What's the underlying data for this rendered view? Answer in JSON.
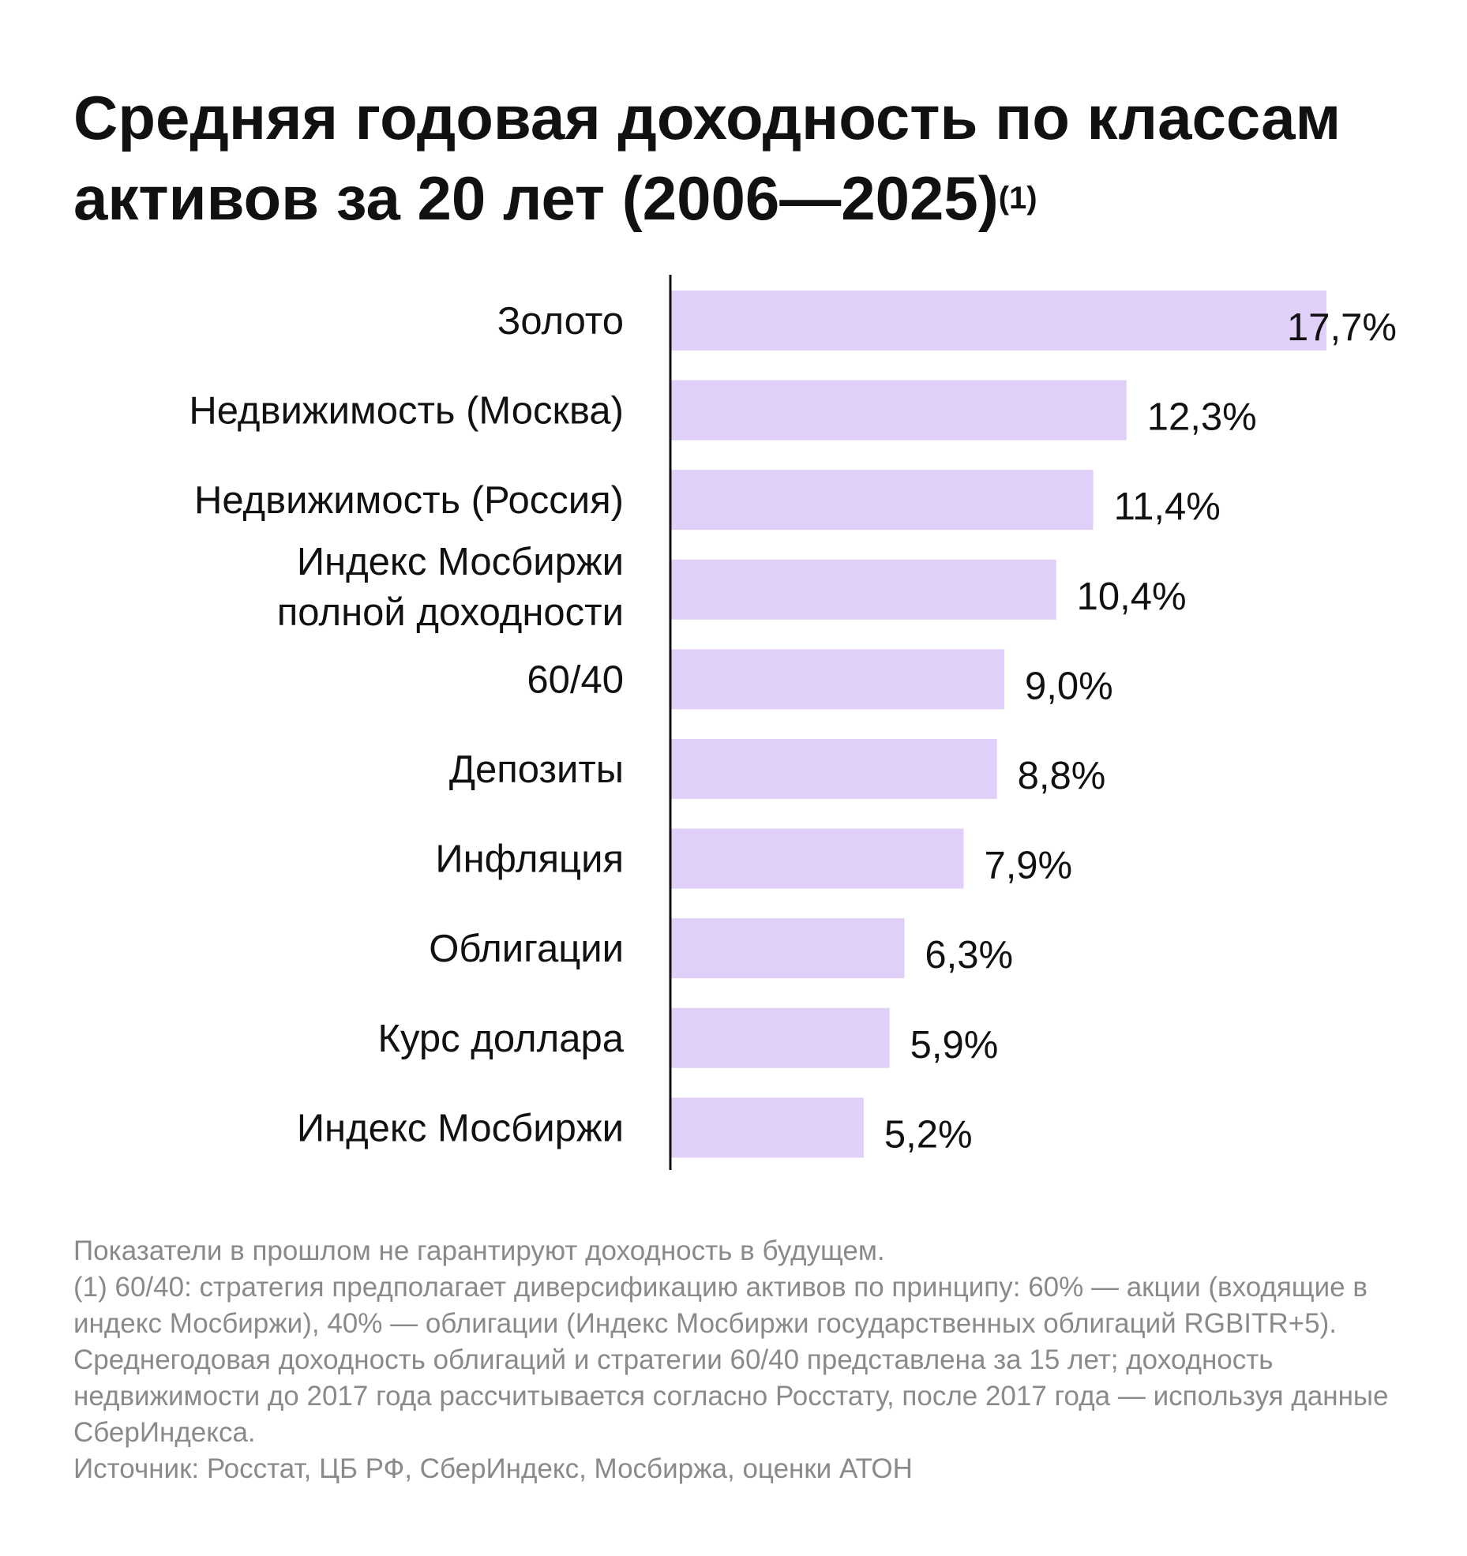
{
  "title": "Средняя годовая доходность по классам активов за 20 лет (2006—2025)",
  "title_sup": "(1)",
  "chart_data": {
    "type": "bar",
    "orientation": "horizontal",
    "title": "Средняя годовая доходность по классам активов за 20 лет (2006—2025)",
    "categories": [
      "Золото",
      "Недвижимость (Москва)",
      "Недвижимость (Россия)",
      "Индекс Мосбиржи полной доходности",
      "60/40",
      "Депозиты",
      "Инфляция",
      "Облигации",
      "Курс доллара",
      "Индекс Мосбиржи"
    ],
    "category_lines": [
      [
        "Золото"
      ],
      [
        "Недвижимость (Москва)"
      ],
      [
        "Недвижимость (Россия)"
      ],
      [
        "Индекс Мосбиржи",
        "полной доходности"
      ],
      [
        "60/40"
      ],
      [
        "Депозиты"
      ],
      [
        "Инфляция"
      ],
      [
        "Облигации"
      ],
      [
        "Курс доллара"
      ],
      [
        "Индекс Мосбиржи"
      ]
    ],
    "values": [
      17.7,
      12.3,
      11.4,
      10.4,
      9.0,
      8.8,
      7.9,
      6.3,
      5.9,
      5.2
    ],
    "value_labels": [
      "17,7%",
      "12,3%",
      "11,4%",
      "10,4%",
      "9,0%",
      "8,8%",
      "7,9%",
      "6,3%",
      "5,9%",
      "5,2%"
    ],
    "unit": "%",
    "xlim": [
      0,
      17.7
    ],
    "grid": false,
    "legend": "none",
    "bar_color": "#e0cff8",
    "axis_color": "#111111"
  },
  "footnotes": [
    "Показатели в прошлом не гарантируют доходность в будущем.",
    "(1) 60/40: стратегия предполагает диверсификацию активов по принципу: 60% — акции (входящие в индекс Мосбиржи), 40% — облигации (Индекс Мосбиржи государственных облигаций RGBITR+5).",
    "Среднегодовая доходность облигаций и стратегии 60/40 представлена за 15 лет; доходность недвижимости до 2017 года рассчитывается согласно Росстату, после 2017 года — используя данные СберИндекса.",
    "Источник: Росстат, ЦБ РФ, СберИндекс, Мосбиржа, оценки АТОН"
  ]
}
